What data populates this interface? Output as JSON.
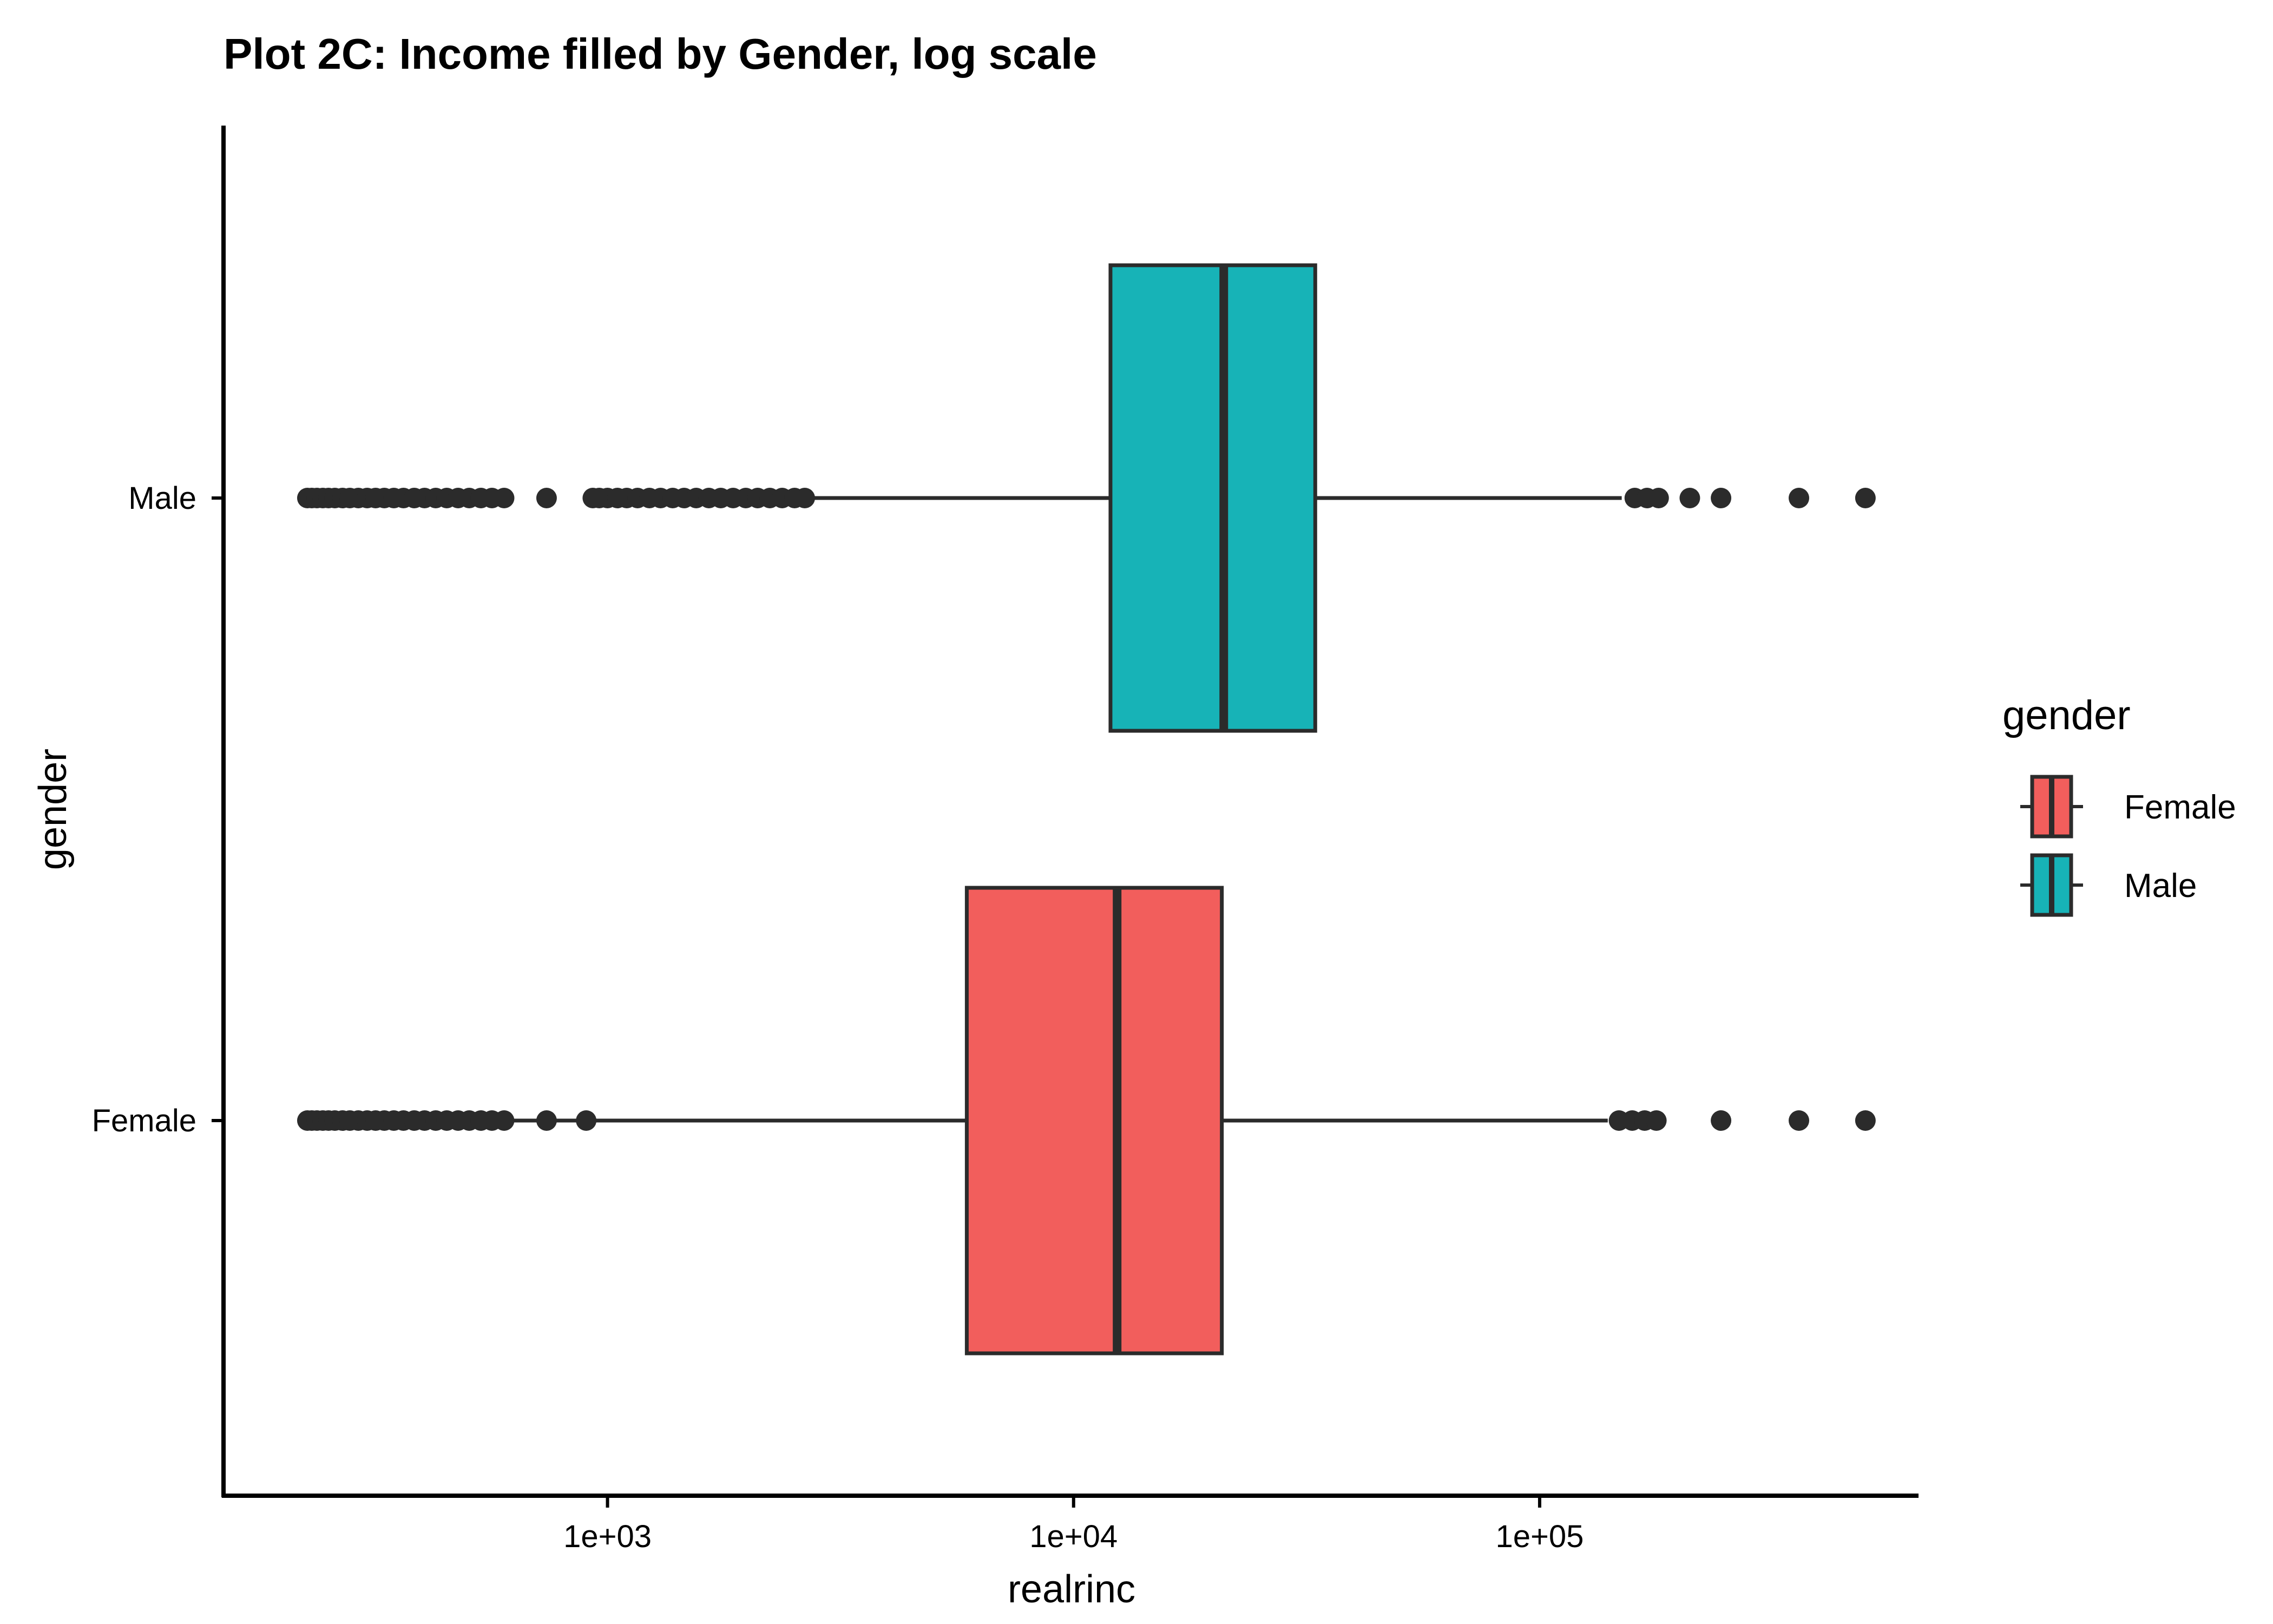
{
  "chart_data": {
    "type": "boxplot",
    "orientation": "horizontal",
    "title": "Plot 2C: Income filled by Gender, log scale",
    "xlabel": "realrinc",
    "ylabel": "gender",
    "x_scale": "log10",
    "xlim": [
      150,
      650000
    ],
    "x_ticks": [
      {
        "value": 1000,
        "label": "1e+03"
      },
      {
        "value": 10000,
        "label": "1e+04"
      },
      {
        "value": 100000,
        "label": "1e+05"
      }
    ],
    "categories": [
      "Female",
      "Male"
    ],
    "grid": false,
    "legend": {
      "title": "gender",
      "position": "right",
      "entries": [
        "Female",
        "Male"
      ]
    },
    "series": [
      {
        "name": "Female",
        "color": "#F25E5C",
        "whisker_low": 227,
        "q1": 5900,
        "median": 12400,
        "q3": 20800,
        "whisker_high": 140000,
        "outliers": [
          227,
          232,
          238,
          245,
          252,
          260,
          270,
          280,
          292,
          305,
          318,
          332,
          348,
          365,
          385,
          405,
          428,
          452,
          478,
          505,
          535,
          565,
          600,
          740,
          900,
          148000,
          158000,
          168000,
          178000,
          245000,
          360000,
          500000
        ]
      },
      {
        "name": "Male",
        "color": "#17B3B7",
        "whisker_low": 2700,
        "q1": 12000,
        "median": 21000,
        "q3": 33000,
        "whisker_high": 150000,
        "outliers": [
          227,
          232,
          238,
          245,
          252,
          260,
          270,
          280,
          292,
          305,
          318,
          332,
          348,
          365,
          385,
          405,
          428,
          452,
          478,
          505,
          535,
          565,
          600,
          740,
          930,
          960,
          1000,
          1050,
          1100,
          1160,
          1230,
          1300,
          1380,
          1460,
          1550,
          1650,
          1750,
          1860,
          1980,
          2100,
          2230,
          2370,
          2520,
          2650,
          160000,
          170000,
          180000,
          210000,
          245000,
          360000,
          500000
        ]
      }
    ]
  }
}
